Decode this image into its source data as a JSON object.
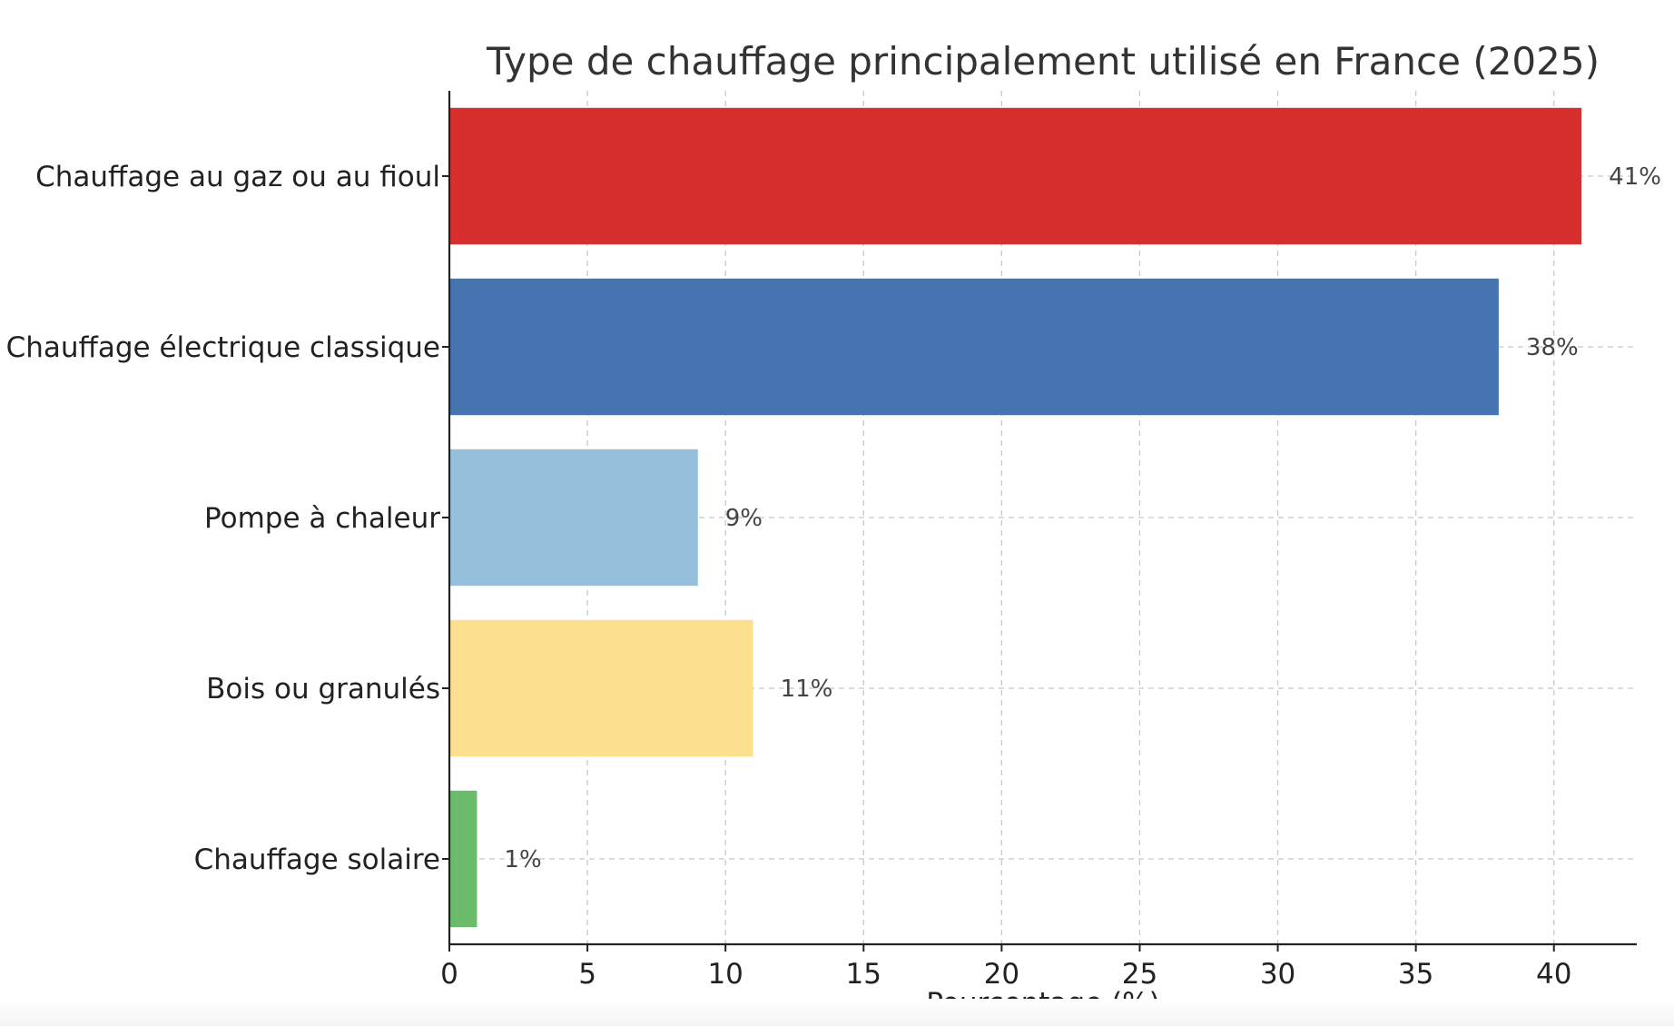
{
  "chart_data": {
    "type": "bar",
    "orientation": "horizontal",
    "title": "Type de chauffage principalement utilisé en France (2025)",
    "xlabel": "Pourcentage (%)",
    "ylabel": "",
    "xlim": [
      0,
      43
    ],
    "xticks": [
      0,
      5,
      10,
      15,
      20,
      25,
      30,
      35,
      40
    ],
    "grid": true,
    "legend": "none",
    "categories": [
      "Chauffage au gaz ou au fioul",
      "Chauffage électrique classique",
      "Pompe à chaleur",
      "Bois ou granulés",
      "Chauffage solaire"
    ],
    "values": [
      41,
      38,
      9,
      11,
      1
    ],
    "data_labels": [
      "41%",
      "38%",
      "9%",
      "11%",
      "1%"
    ],
    "colors": [
      "#d62f2d",
      "#4674b1",
      "#95bfdb",
      "#fcdf8f",
      "#6abc6a"
    ]
  }
}
